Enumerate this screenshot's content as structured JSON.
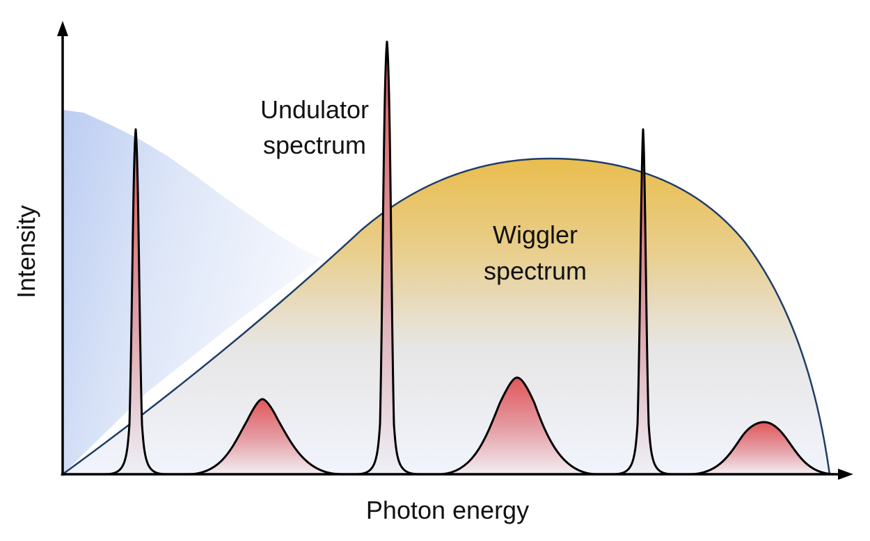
{
  "diagram": {
    "x_axis_label": "Photon energy",
    "y_axis_label": "Intensity",
    "undulator_label_line1": "Undulator",
    "undulator_label_line2": "spectrum",
    "wiggler_label_line1": "Wiggler",
    "wiggler_label_line2": "spectrum"
  },
  "colors": {
    "wiggler_fill_top": "#e9bd4e",
    "wiggler_fill_bottom": "#f1f4fc",
    "wiggler_outline": "#1f3c66",
    "undulator_peak_red": "#e0585a",
    "background_blue": "#bccdf2",
    "axis": "#000000"
  }
}
